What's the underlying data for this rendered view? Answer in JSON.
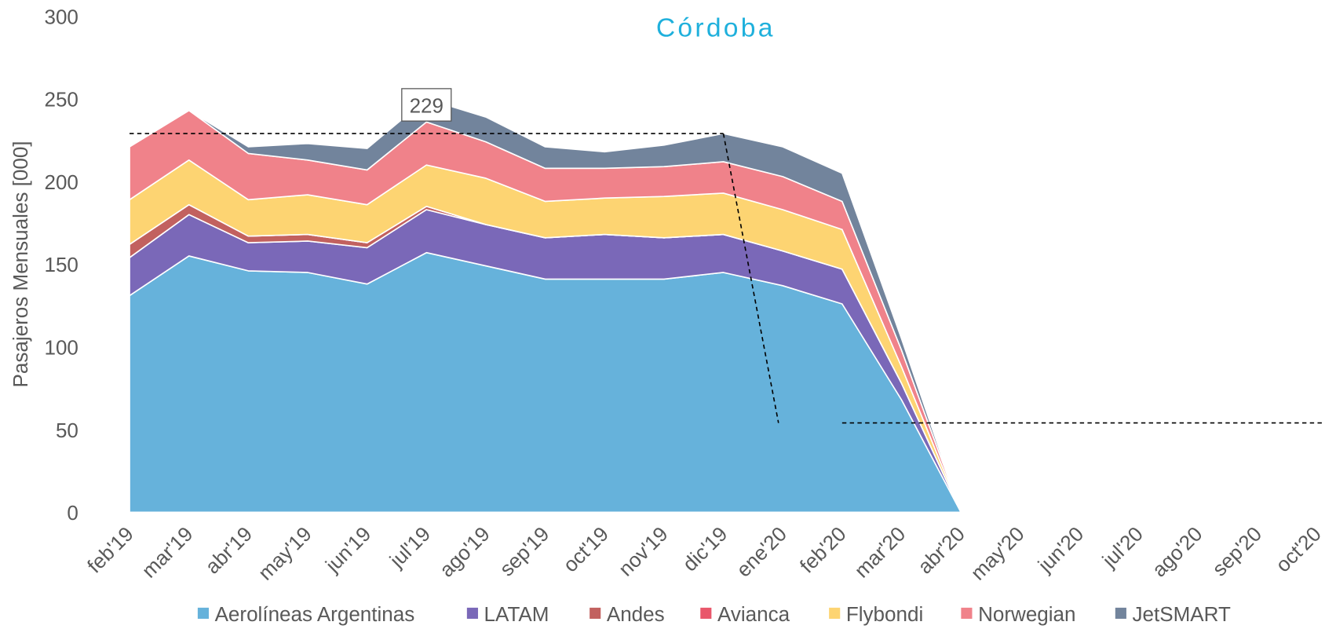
{
  "chart_data": {
    "type": "stacked_area",
    "title": "Córdoba",
    "y_label": "Pasajeros Mensuales [000]",
    "categories": [
      "feb'19",
      "mar'19",
      "abr'19",
      "may'19",
      "jun'19",
      "jul'19",
      "ago'19",
      "sep'19",
      "oct'19",
      "nov'19",
      "dic'19",
      "ene'20",
      "feb'20",
      "mar'20",
      "abr'20",
      "may'20",
      "jun'20",
      "jul'20",
      "ago'20",
      "sep'20",
      "oct'20"
    ],
    "series": [
      {
        "name": "Aerolíneas Argentinas",
        "color": "#66b2db",
        "values": [
          131,
          155,
          146,
          145,
          138,
          157,
          149,
          141,
          141,
          141,
          145,
          137,
          126,
          68,
          0,
          null,
          null,
          null,
          null,
          null,
          null
        ]
      },
      {
        "name": "LATAM",
        "color": "#7a68b8",
        "values": [
          23,
          25,
          17,
          19,
          22,
          26,
          25,
          25,
          27,
          25,
          23,
          21,
          21,
          10,
          0,
          null,
          null,
          null,
          null,
          null,
          null
        ]
      },
      {
        "name": "Andes",
        "color": "#c2615f",
        "values": [
          8,
          6,
          4,
          4,
          3,
          2,
          0,
          0,
          0,
          0,
          0,
          0,
          0,
          0,
          0,
          null,
          null,
          null,
          null,
          null,
          null
        ]
      },
      {
        "name": "Avianca",
        "color": "#e9576b",
        "values": [
          0,
          0,
          0,
          0,
          0,
          0,
          0,
          0,
          0,
          0,
          0,
          0,
          0,
          0,
          0,
          null,
          null,
          null,
          null,
          null,
          null
        ]
      },
      {
        "name": "Flybondi",
        "color": "#fdd472",
        "values": [
          27,
          27,
          22,
          24,
          23,
          25,
          28,
          22,
          22,
          25,
          25,
          25,
          24,
          10,
          0,
          null,
          null,
          null,
          null,
          null,
          null
        ]
      },
      {
        "name": "Norwegian",
        "color": "#f0828a",
        "values": [
          32,
          30,
          28,
          21,
          21,
          26,
          22,
          20,
          18,
          18,
          19,
          20,
          17,
          10,
          0,
          null,
          null,
          null,
          null,
          null,
          null
        ]
      },
      {
        "name": "JetSMART",
        "color": "#72849c",
        "values": [
          0,
          0,
          4,
          10,
          13,
          14,
          15,
          13,
          10,
          13,
          17,
          18,
          17,
          7,
          0,
          null,
          null,
          null,
          null,
          null,
          null
        ]
      }
    ],
    "ylim": [
      0,
      300
    ],
    "yticks": [
      0,
      50,
      100,
      150,
      200,
      250,
      300
    ],
    "annotation_value": 229,
    "reference_value": 54,
    "legend": "bottom"
  }
}
